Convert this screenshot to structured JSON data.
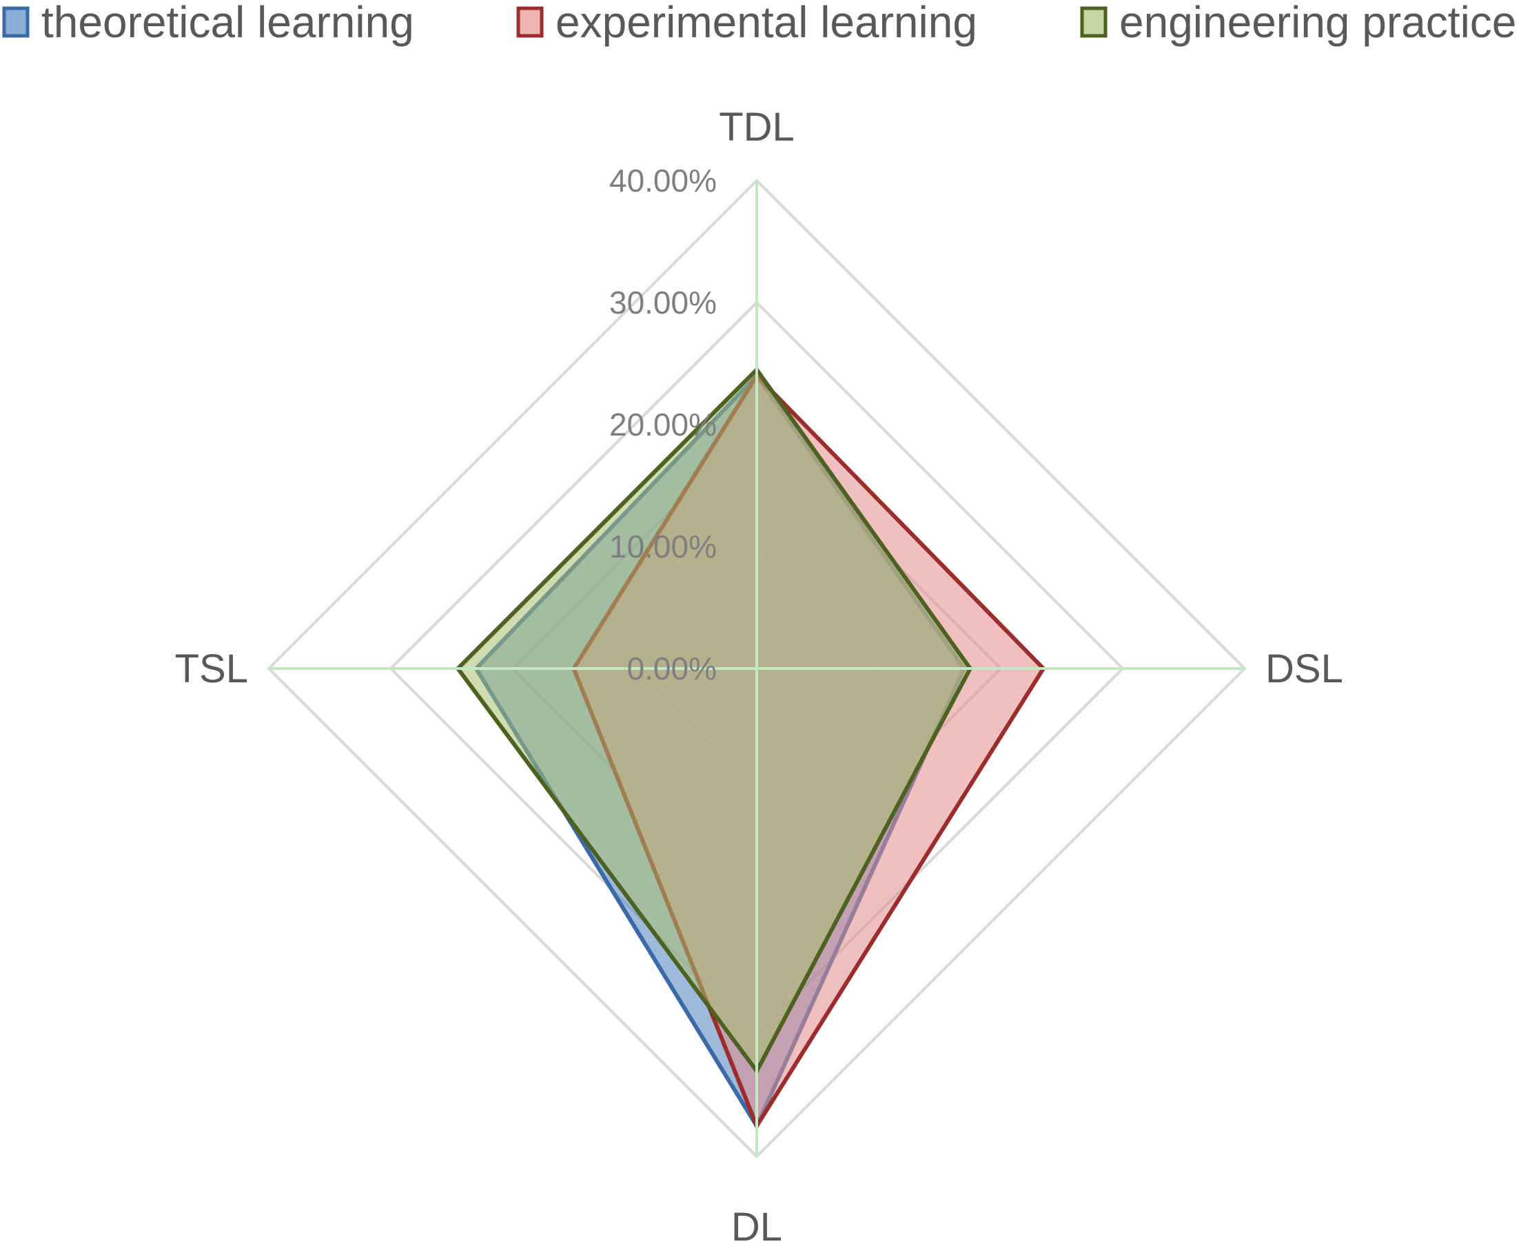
{
  "chart_data": {
    "type": "radar",
    "categories": [
      "TDL",
      "DSL",
      "DL",
      "TSL"
    ],
    "rlim": [
      0,
      40
    ],
    "ticks": [
      "0.00%",
      "10.00%",
      "20.00%",
      "30.00%",
      "40.00%"
    ],
    "tick_values": [
      0,
      10,
      20,
      30,
      40
    ],
    "series": [
      {
        "name": "theoretical learning",
        "values": [
          24,
          17,
          37.5,
          23
        ],
        "fill": "#4f81bd",
        "stroke": "#3a6aa8"
      },
      {
        "name": "experimental learning",
        "values": [
          24,
          23.5,
          37.5,
          15
        ],
        "fill": "#e38c8c",
        "stroke": "#9b2d2d"
      },
      {
        "name": "engineering practice",
        "values": [
          24.5,
          17.5,
          33,
          24.5
        ],
        "fill": "#a8c070",
        "stroke": "#4d6120"
      }
    ],
    "legend_position": "top",
    "grid": true,
    "colors": {
      "grid": "#d9d9d9",
      "spokes": "#c6e6c6"
    }
  }
}
